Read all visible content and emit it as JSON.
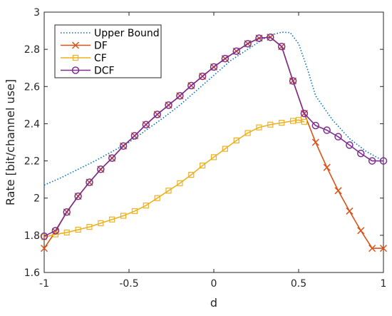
{
  "chart_data": {
    "type": "line",
    "xlabel": "d",
    "ylabel": "Rate [bit/channel use]",
    "xlim": [
      -1,
      1
    ],
    "ylim": [
      1.6,
      3.0
    ],
    "x_ticks": [
      "-1",
      "-0.5",
      "0",
      "0.5",
      "1"
    ],
    "x_tick_values": [
      -1,
      -0.5,
      0,
      0.5,
      1
    ],
    "y_ticks": [
      "1.6",
      "1.8",
      "2",
      "2.2",
      "2.4",
      "2.6",
      "2.8",
      "3"
    ],
    "y_tick_values": [
      1.6,
      1.8,
      2.0,
      2.2,
      2.4,
      2.6,
      2.8,
      3.0
    ],
    "grid": false,
    "box": true,
    "legend_position": "top-left",
    "series": [
      {
        "name": "Upper Bound",
        "color": "#0072BD",
        "style": "dotted",
        "marker": "none",
        "x": [
          -1,
          -0.9,
          -0.8,
          -0.7,
          -0.6,
          -0.5,
          -0.4,
          -0.3,
          -0.2,
          -0.1,
          0,
          0.1,
          0.2,
          0.3,
          0.35,
          0.4,
          0.45,
          0.5,
          0.55,
          0.6,
          0.7,
          0.8,
          0.9,
          1
        ],
        "y": [
          2.07,
          2.11,
          2.155,
          2.2,
          2.25,
          2.3,
          2.365,
          2.43,
          2.5,
          2.58,
          2.66,
          2.74,
          2.8,
          2.86,
          2.88,
          2.892,
          2.89,
          2.83,
          2.7,
          2.55,
          2.42,
          2.32,
          2.25,
          2.2
        ]
      },
      {
        "name": "DF",
        "color": "#D95319",
        "style": "solid",
        "marker": "x",
        "x": [
          -1,
          -0.9333,
          -0.8667,
          -0.8,
          -0.7333,
          -0.6667,
          -0.6,
          -0.5333,
          -0.4667,
          -0.4,
          -0.3333,
          -0.2667,
          -0.2,
          -0.1333,
          -0.0667,
          0,
          0.0667,
          0.1333,
          0.2,
          0.2667,
          0.3333,
          0.4,
          0.4667,
          0.5333,
          0.6,
          0.6667,
          0.7333,
          0.8,
          0.8667,
          0.9333,
          1
        ],
        "y": [
          1.73,
          1.82,
          1.925,
          2.01,
          2.085,
          2.155,
          2.215,
          2.28,
          2.335,
          2.395,
          2.45,
          2.5,
          2.55,
          2.605,
          2.655,
          2.705,
          2.75,
          2.79,
          2.83,
          2.86,
          2.865,
          2.815,
          2.63,
          2.455,
          2.3,
          2.165,
          2.04,
          1.93,
          1.825,
          1.73,
          1.73
        ]
      },
      {
        "name": "CF",
        "color": "#EDB120",
        "style": "solid",
        "marker": "square",
        "x": [
          -1,
          -0.9333,
          -0.8667,
          -0.8,
          -0.7333,
          -0.6667,
          -0.6,
          -0.5333,
          -0.4667,
          -0.4,
          -0.3333,
          -0.2667,
          -0.2,
          -0.1333,
          -0.0667,
          0,
          0.0667,
          0.1333,
          0.2,
          0.2667,
          0.3333,
          0.4,
          0.4667,
          0.5,
          0.5333
        ],
        "y": [
          1.79,
          1.805,
          1.815,
          1.83,
          1.845,
          1.865,
          1.885,
          1.905,
          1.93,
          1.96,
          2.0,
          2.04,
          2.08,
          2.125,
          2.175,
          2.22,
          2.265,
          2.31,
          2.35,
          2.38,
          2.395,
          2.405,
          2.415,
          2.42,
          2.41
        ]
      },
      {
        "name": "DCF",
        "color": "#7E2F8E",
        "style": "solid",
        "marker": "circle",
        "x": [
          -1,
          -0.9333,
          -0.8667,
          -0.8,
          -0.7333,
          -0.6667,
          -0.6,
          -0.5333,
          -0.4667,
          -0.4,
          -0.3333,
          -0.2667,
          -0.2,
          -0.1333,
          -0.0667,
          0,
          0.0667,
          0.1333,
          0.2,
          0.2667,
          0.3333,
          0.4,
          0.4667,
          0.5333,
          0.6,
          0.6667,
          0.7333,
          0.8,
          0.8667,
          0.9333,
          1
        ],
        "y": [
          1.795,
          1.825,
          1.925,
          2.01,
          2.085,
          2.155,
          2.215,
          2.28,
          2.335,
          2.395,
          2.45,
          2.5,
          2.55,
          2.605,
          2.655,
          2.705,
          2.75,
          2.79,
          2.83,
          2.86,
          2.865,
          2.815,
          2.63,
          2.455,
          2.39,
          2.365,
          2.33,
          2.285,
          2.24,
          2.2,
          2.2
        ]
      }
    ]
  }
}
